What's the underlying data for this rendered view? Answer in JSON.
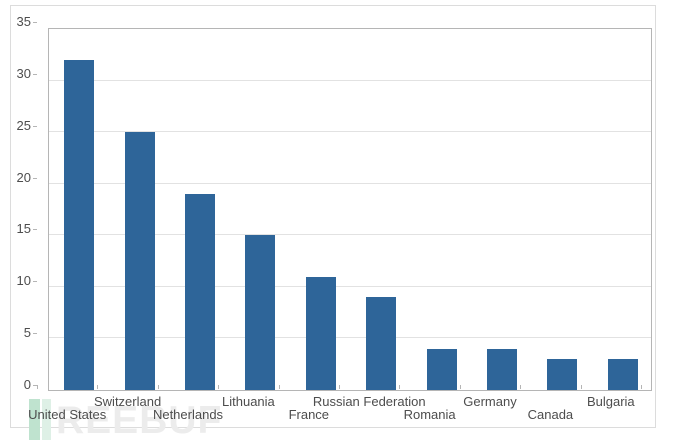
{
  "chart_data": {
    "type": "bar",
    "categories": [
      "United States",
      "Switzerland",
      "Netherlands",
      "Lithuania",
      "France",
      "Russian Federation",
      "Romania",
      "Germany",
      "Canada",
      "Bulgaria"
    ],
    "values": [
      32,
      25,
      19,
      15,
      11,
      9,
      4,
      4,
      3,
      3
    ],
    "title": "",
    "xlabel": "",
    "ylabel": "",
    "ylim": [
      0,
      35
    ],
    "yticks": [
      0,
      5,
      10,
      15,
      20,
      25,
      30,
      35
    ],
    "grid": "horizontal",
    "legend": "none",
    "bar_color": "#2e6599",
    "gridline_color": "#e2e2e2",
    "axis_text_color": "#4d4d4d"
  },
  "watermark": {
    "text": "REEBUF",
    "text_color": "#ececec",
    "icon_name": "freebuf-logo-icon",
    "icon_color_left": "#bfe3cf",
    "icon_color_right": "#def0e6"
  }
}
